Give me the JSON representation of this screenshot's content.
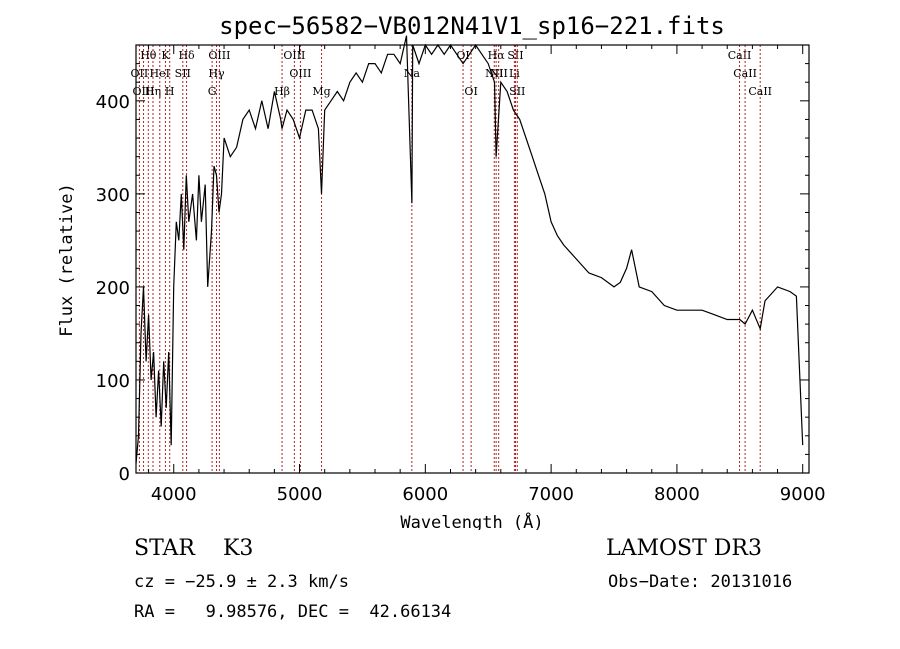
{
  "chart_data": {
    "type": "line",
    "title": "spec−56582−VB012N41V1_sp16−221.fits",
    "xlabel": "Wavelength (Å)",
    "ylabel": "Flux (relative)",
    "xlim": [
      3700,
      9050
    ],
    "ylim": [
      0,
      460
    ],
    "xticks": [
      4000,
      5000,
      6000,
      7000,
      8000,
      9000
    ],
    "yticks": [
      0,
      100,
      200,
      300,
      400
    ],
    "grid": false,
    "series": [
      {
        "name": "spectrum",
        "x": [
          3700,
          3720,
          3740,
          3760,
          3780,
          3800,
          3820,
          3840,
          3860,
          3880,
          3900,
          3920,
          3940,
          3960,
          3980,
          4000,
          4020,
          4040,
          4060,
          4080,
          4100,
          4120,
          4150,
          4180,
          4200,
          4220,
          4250,
          4270,
          4300,
          4320,
          4340,
          4360,
          4380,
          4400,
          4450,
          4500,
          4550,
          4600,
          4650,
          4700,
          4750,
          4800,
          4850,
          4861,
          4900,
          4950,
          5000,
          5050,
          5100,
          5150,
          5175,
          5200,
          5250,
          5300,
          5350,
          5400,
          5450,
          5500,
          5550,
          5600,
          5650,
          5700,
          5750,
          5800,
          5850,
          5893,
          5900,
          5950,
          6000,
          6050,
          6100,
          6150,
          6200,
          6250,
          6300,
          6350,
          6400,
          6450,
          6500,
          6550,
          6563,
          6600,
          6650,
          6700,
          6750,
          6800,
          6850,
          6900,
          6950,
          7000,
          7050,
          7100,
          7200,
          7300,
          7400,
          7500,
          7550,
          7600,
          7640,
          7700,
          7800,
          7900,
          8000,
          8100,
          8200,
          8300,
          8400,
          8500,
          8542,
          8600,
          8662,
          8700,
          8800,
          8900,
          8950,
          9000
        ],
        "values": [
          10,
          40,
          150,
          200,
          120,
          170,
          100,
          130,
          60,
          110,
          50,
          120,
          70,
          130,
          30,
          200,
          270,
          250,
          300,
          240,
          320,
          270,
          300,
          250,
          320,
          270,
          310,
          200,
          260,
          330,
          320,
          280,
          300,
          360,
          340,
          350,
          380,
          390,
          370,
          400,
          370,
          410,
          380,
          370,
          390,
          380,
          360,
          390,
          390,
          370,
          300,
          390,
          400,
          410,
          400,
          420,
          430,
          420,
          440,
          440,
          430,
          450,
          450,
          440,
          470,
          290,
          460,
          440,
          460,
          450,
          460,
          450,
          460,
          450,
          440,
          450,
          460,
          450,
          440,
          420,
          340,
          420,
          410,
          390,
          380,
          360,
          340,
          320,
          300,
          270,
          255,
          245,
          230,
          215,
          210,
          200,
          205,
          220,
          240,
          200,
          195,
          180,
          175,
          175,
          175,
          170,
          165,
          165,
          160,
          175,
          155,
          185,
          200,
          195,
          190,
          30
        ]
      }
    ],
    "line_markers": [
      {
        "name": "Hθ",
        "x": 3798
      },
      {
        "name": "OII",
        "x": 3727
      },
      {
        "name": "OIII",
        "x": 3760
      },
      {
        "name": "K",
        "x": 3934
      },
      {
        "name": "HeI",
        "x": 3889
      },
      {
        "name": "Hη",
        "x": 3835
      },
      {
        "name": "H",
        "x": 3968
      },
      {
        "name": "Hδ",
        "x": 4102
      },
      {
        "name": "SII",
        "x": 4072
      },
      {
        "name": "OIII",
        "x": 4363
      },
      {
        "name": "Hγ",
        "x": 4340
      },
      {
        "name": "G",
        "x": 4305
      },
      {
        "name": "Hβ",
        "x": 4861
      },
      {
        "name": "OIII",
        "x": 4959
      },
      {
        "name": "OIII",
        "x": 5007
      },
      {
        "name": "Mg",
        "x": 5175
      },
      {
        "name": "Na",
        "x": 5893
      },
      {
        "name": "OI",
        "x": 6300
      },
      {
        "name": "OI",
        "x": 6364
      },
      {
        "name": "NII",
        "x": 6548
      },
      {
        "name": "Hα",
        "x": 6563
      },
      {
        "name": "NII",
        "x": 6583
      },
      {
        "name": "Li",
        "x": 6708
      },
      {
        "name": "SII",
        "x": 6717
      },
      {
        "name": "SII",
        "x": 6731
      },
      {
        "name": "CaII",
        "x": 8498
      },
      {
        "name": "CaII",
        "x": 8542
      },
      {
        "name": "CaII",
        "x": 8662
      }
    ]
  },
  "info": {
    "class_line": "STAR    K3",
    "survey": "LAMOST DR3",
    "cz_line": "cz = −25.9 ± 2.3 km/s",
    "obs_date": "Obs−Date: 20131016",
    "radec_line": "RA =   9.98576, DEC =  42.66134"
  },
  "colors": {
    "axis": "#000000",
    "spectrum": "#000000",
    "markers": "#b22222"
  }
}
